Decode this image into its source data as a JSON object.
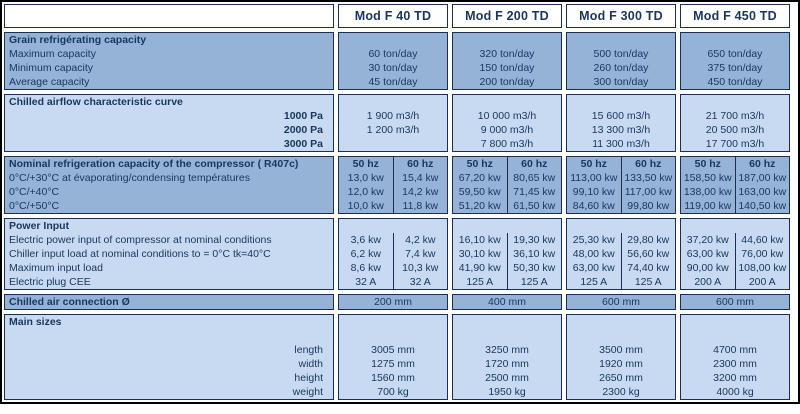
{
  "table": {
    "corner_label": "",
    "models": [
      "Mod F 40 TD",
      "Mod F 200 TD",
      "Mod F 300 TD",
      "Mod F 450 TD"
    ],
    "colors": {
      "medium_blue": "#95B3D7",
      "light_blue": "#C7DAF1",
      "text_navy": "#17375D",
      "border": "#1B2F52"
    },
    "sections": [
      {
        "title": "Grain refrigérating capacity",
        "tone": "medium",
        "split": false,
        "rows": [
          {
            "label": "Maximum capacity",
            "align": "left",
            "values": [
              "60 ton/day",
              "320 ton/day",
              "500 ton/day",
              "650 ton/day"
            ]
          },
          {
            "label": "Minimum capacity",
            "align": "left",
            "values": [
              "30 ton/day",
              "150 ton/day",
              "260 ton/day",
              "375 ton/day"
            ]
          },
          {
            "label": "Average capacity",
            "align": "left",
            "values": [
              "45 ton/day",
              "200 ton/day",
              "300 ton/day",
              "450 ton/day"
            ]
          }
        ]
      },
      {
        "title": "Chilled airflow characteristic curve",
        "tone": "light",
        "split": false,
        "rows": [
          {
            "label": "1000 Pa",
            "align": "right",
            "bold": true,
            "values": [
              "1 900 m3/h",
              "10 000 m3/h",
              "15 600 m3/h",
              "21 700 m3/h"
            ]
          },
          {
            "label": "2000 Pa",
            "align": "right",
            "bold": true,
            "values": [
              "1 200 m3/h",
              "9 000 m3/h",
              "13 300 m3/h",
              "20 500 m3/h"
            ]
          },
          {
            "label": "3000 Pa",
            "align": "right",
            "bold": true,
            "values": [
              "",
              "7 800 m3/h",
              "11 300 m3/h",
              "17 700 m3/h"
            ]
          }
        ]
      },
      {
        "title": "Nominal refrigeration capacity of the compressor ( R407c)",
        "tone": "medium",
        "split": true,
        "header_values": [
          "50 hz",
          "60 hz"
        ],
        "rows": [
          {
            "label": "0°C/+30°C at évaporating/condensing températures",
            "align": "left",
            "values": [
              [
                "13,0 kw",
                "15,4 kw"
              ],
              [
                "67,20 kw",
                "80,65 kw"
              ],
              [
                "113,00 kw",
                "133,50 kw"
              ],
              [
                "158,50 kw",
                "187,00 kw"
              ]
            ]
          },
          {
            "label": "0°C/+40°C",
            "align": "left",
            "values": [
              [
                "12,0 kw",
                "14,2 kw"
              ],
              [
                "59,50 kw",
                "71,45 kw"
              ],
              [
                "99,10 kw",
                "117,00 kw"
              ],
              [
                "138,00 kw",
                "163,00 kw"
              ]
            ]
          },
          {
            "label": "0°C/+50°C",
            "align": "left",
            "values": [
              [
                "10,0 kw",
                "11,8 kw"
              ],
              [
                "51,20 kw",
                "61,50 kw"
              ],
              [
                "84,60 kw",
                "99,80 kw"
              ],
              [
                "119,00 kw",
                "140,50 kw"
              ]
            ]
          }
        ]
      },
      {
        "title": "Power Input",
        "tone": "light",
        "split": true,
        "rows": [
          {
            "label": "Electric power input of compressor at nominal conditions",
            "align": "left",
            "values": [
              [
                "3,6 kw",
                "4,2 kw"
              ],
              [
                "16,10 kw",
                "19,30 kw"
              ],
              [
                "25,30 kw",
                "29,80 kw"
              ],
              [
                "37,20 kw",
                "44,60 kw"
              ]
            ]
          },
          {
            "label": "Chiller input load at nominal conditions to = 0°C tk=40°C",
            "align": "left",
            "values": [
              [
                "6,2 kw",
                "7,4 kw"
              ],
              [
                "30,10 kw",
                "36,10 kw"
              ],
              [
                "48,00 kw",
                "56,60 kw"
              ],
              [
                "63,00 kw",
                "76,00 kw"
              ]
            ]
          },
          {
            "label": "Maximum input load",
            "align": "left",
            "values": [
              [
                "8,6 kw",
                "10,3 kw"
              ],
              [
                "41,90 kw",
                "50,30 kw"
              ],
              [
                "63,00 kw",
                "74,40 kw"
              ],
              [
                "90,00 kw",
                "108,00 kw"
              ]
            ]
          },
          {
            "label": "Electric plug CEE",
            "align": "left",
            "values": [
              [
                "32 A",
                "32 A"
              ],
              [
                "125 A",
                "125 A"
              ],
              [
                "125 A",
                "125 A"
              ],
              [
                "200 A",
                "200 A"
              ]
            ]
          }
        ]
      },
      {
        "title": "Chilled air connection Ø",
        "tone": "medium",
        "split": false,
        "title_values": [
          "200 mm",
          "400 mm",
          "600 mm",
          "600 mm"
        ],
        "rows": []
      },
      {
        "title": "Main sizes",
        "tone": "light",
        "split": false,
        "rows": [
          {
            "label": "",
            "align": "left",
            "values": [
              "",
              "",
              "",
              ""
            ]
          },
          {
            "label": "length",
            "align": "right",
            "values": [
              "3005 mm",
              "3250 mm",
              "3500 mm",
              "4700 mm"
            ]
          },
          {
            "label": "width",
            "align": "right",
            "values": [
              "1275 mm",
              "1720 mm",
              "1920 mm",
              "2300 mm"
            ]
          },
          {
            "label": "height",
            "align": "right",
            "values": [
              "1560 mm",
              "2500 mm",
              "2650 mm",
              "3200 mm"
            ]
          },
          {
            "label": "weight",
            "align": "right",
            "values": [
              "700 kg",
              "1950 kg",
              "2300 kg",
              "4000 kg"
            ]
          }
        ]
      }
    ]
  }
}
